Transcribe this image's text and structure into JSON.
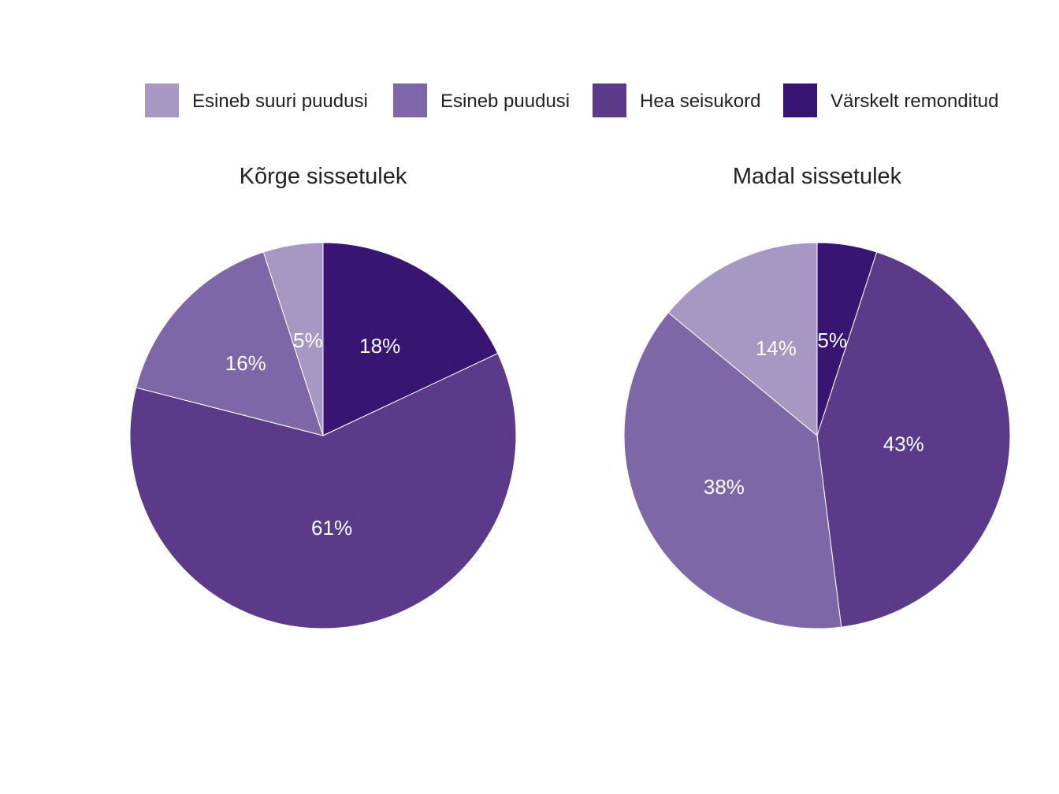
{
  "chart_data": {
    "type": "pie",
    "legend": {
      "placement": "top",
      "entries": [
        {
          "label": "Esineb suuri puudusi",
          "color": "#a797c3"
        },
        {
          "label": "Esineb puudusi",
          "color": "#7d67a6"
        },
        {
          "label": "Hea seisukord",
          "color": "#5b3b89"
        },
        {
          "label": "Värskelt remonditud",
          "color": "#381572"
        }
      ]
    },
    "charts": [
      {
        "title": "Kõrge sissetulek",
        "slices": [
          {
            "category": "Värskelt remonditud",
            "value": 18,
            "label": "18%"
          },
          {
            "category": "Hea seisukord",
            "value": 61,
            "label": "61%"
          },
          {
            "category": "Esineb puudusi",
            "value": 16,
            "label": "16%"
          },
          {
            "category": "Esineb suuri puudusi",
            "value": 5,
            "label": "5%"
          }
        ]
      },
      {
        "title": "Madal sissetulek",
        "slices": [
          {
            "category": "Värskelt remonditud",
            "value": 5,
            "label": "5%"
          },
          {
            "category": "Hea seisukord",
            "value": 43,
            "label": "43%"
          },
          {
            "category": "Esineb puudusi",
            "value": 38,
            "label": "38%"
          },
          {
            "category": "Esineb suuri puudusi",
            "value": 14,
            "label": "14%"
          }
        ]
      }
    ]
  }
}
